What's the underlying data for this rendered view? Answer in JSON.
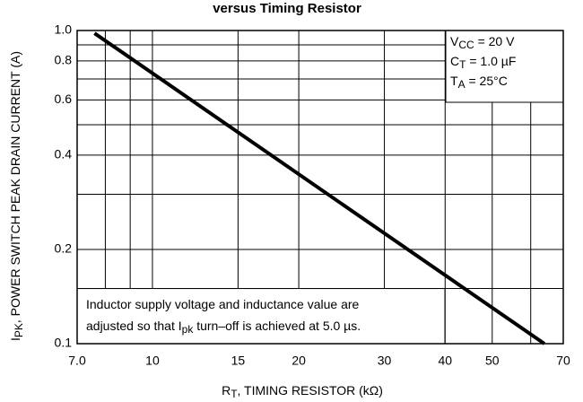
{
  "chart_data": {
    "type": "line",
    "title": "versus Timing Resistor",
    "x_label": [
      "R",
      "T",
      ", TIMING RESISTOR (kΩ)"
    ],
    "y_label": [
      "I",
      "PK",
      ", POWER SWITCH PEAK DRAIN CURRENT (A)"
    ],
    "x": [
      7.6,
      64
    ],
    "series": [
      {
        "color": "#000000",
        "values": [
          0.98,
          0.1
        ]
      }
    ],
    "xlim": [
      7,
      70
    ],
    "ylim": [
      0.1,
      1.0
    ],
    "xscale": "log",
    "yscale": "log",
    "xticks": [
      {
        "value": 7,
        "label": "7.0"
      },
      10,
      15,
      20,
      30,
      40,
      50,
      70
    ],
    "yticks": [
      {
        "value": 1,
        "label": "1.0"
      },
      0.8,
      0.6,
      0.4,
      0.2,
      0.1
    ],
    "xgrid": [
      8,
      9,
      60
    ],
    "ygrid": [
      0.9,
      0.7,
      0.5,
      0.3,
      0.15
    ],
    "grid": true,
    "conditions": [
      [
        "V",
        "CC",
        " = 20 V"
      ],
      [
        "C",
        "T",
        " = 1.0 µF"
      ],
      [
        "T",
        "A",
        " = 25°C"
      ]
    ],
    "note": [
      [
        "Inductor supply voltage and inductance value are"
      ],
      [
        "adjusted so that I",
        "pk",
        " turn–off is achieved at 5.0 µs."
      ]
    ]
  }
}
